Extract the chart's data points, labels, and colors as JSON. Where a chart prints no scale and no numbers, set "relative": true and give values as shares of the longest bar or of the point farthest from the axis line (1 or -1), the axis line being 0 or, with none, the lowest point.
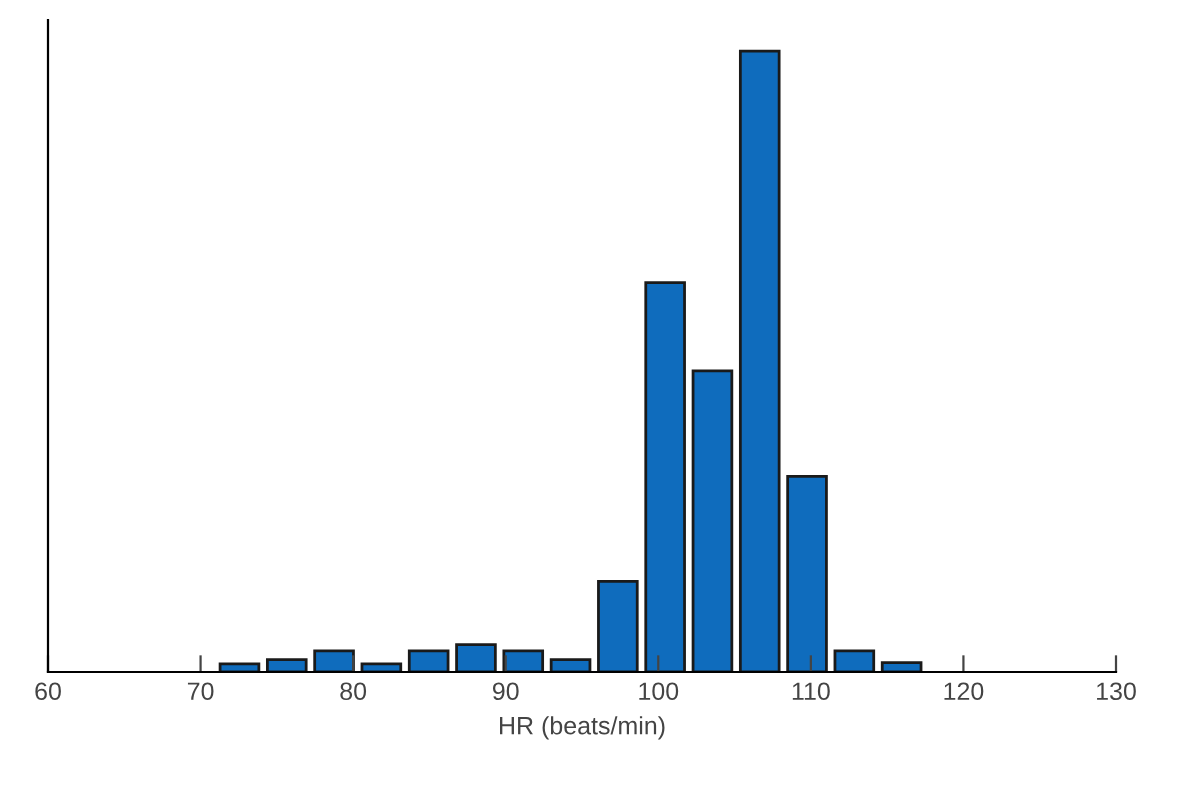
{
  "chart_data": {
    "type": "bar",
    "relative": true,
    "xlabel": "HR (beats/min)",
    "x": [
      72.55,
      75.65,
      78.75,
      81.85,
      84.95,
      88.05,
      91.15,
      94.25,
      97.35,
      100.45,
      103.55,
      106.65,
      109.75,
      112.85,
      115.95
    ],
    "values": [
      0.013,
      0.02,
      0.034,
      0.013,
      0.034,
      0.044,
      0.034,
      0.02,
      0.146,
      0.627,
      0.485,
      1,
      0.315,
      0.034,
      0.015
    ],
    "color": "#0f6cbd",
    "xlim": [
      60,
      130
    ],
    "xticks": [
      60,
      70,
      80,
      90,
      100,
      110,
      120,
      130
    ],
    "grid": false,
    "legend": false
  }
}
